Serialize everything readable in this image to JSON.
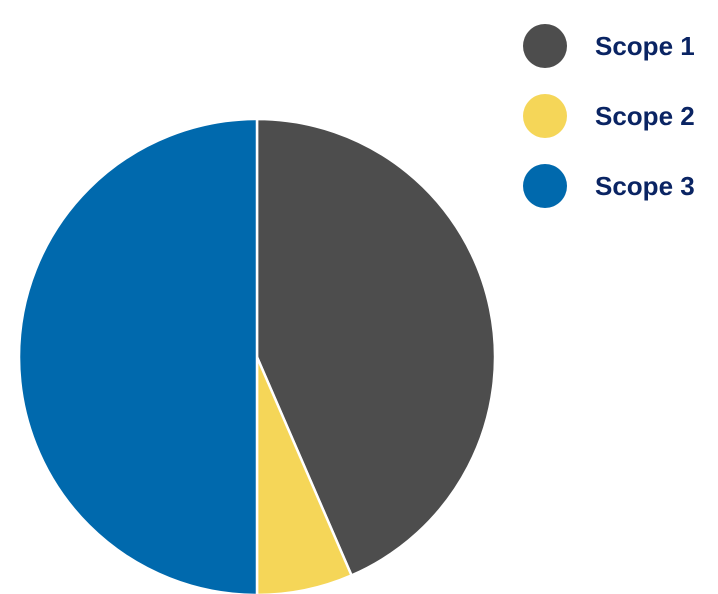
{
  "chart_data": {
    "type": "pie",
    "title": "",
    "series": [
      {
        "name": "Scope 1",
        "value": 43.5,
        "color": "#4d4d4d"
      },
      {
        "name": "Scope 2",
        "value": 6.5,
        "color": "#f5d658"
      },
      {
        "name": "Scope 3",
        "value": 50.0,
        "color": "#0069ad"
      }
    ],
    "start_angle": "12 o'clock",
    "direction": "clockwise",
    "slice_border_color": "#ffffff",
    "legend_position": "top-right",
    "legend_text_color": "#0a2463"
  }
}
